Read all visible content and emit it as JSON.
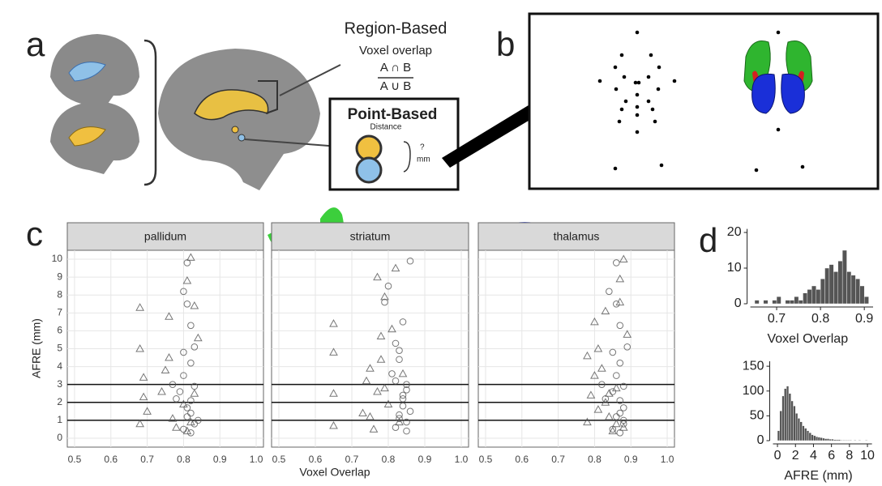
{
  "panels": {
    "a": {
      "letter": "a",
      "region_title": "Region-Based",
      "region_sub": "Voxel overlap",
      "num": "A ∩ B",
      "den": "A ∪ B",
      "point_title": "Point-Based",
      "point_sub": "Distance",
      "q": "?",
      "unit": "mm"
    },
    "b": {
      "letter": "b"
    },
    "c": {
      "letter": "c",
      "xlabel": "Voxel Overlap",
      "ylabel": "AFRE (mm)"
    },
    "d": {
      "letter": "d"
    }
  },
  "chart_data": [
    {
      "type": "scatter",
      "title": "pallidum",
      "xlim": [
        0.48,
        1.02
      ],
      "ylim": [
        -0.5,
        10.5
      ],
      "xticks": [
        0.5,
        0.6,
        0.7,
        0.8,
        0.9,
        {
          "value": 1,
          "label": "1.0"
        }
      ],
      "yticks": [
        0,
        1,
        2,
        3,
        4,
        5,
        6,
        7,
        8,
        9,
        10
      ],
      "grid": true,
      "hlines": [
        1,
        2,
        3
      ],
      "series": [
        {
          "marker": "circle",
          "color": "#555555",
          "x": [
            0.8,
            0.81,
            0.82,
            0.83,
            0.8,
            0.82,
            0.81,
            0.79,
            0.83,
            0.82,
            0.81,
            0.8,
            0.84,
            0.82,
            0.78,
            0.77,
            0.81,
            0.82,
            0.8,
            0.83
          ],
          "values": [
            0.5,
            1.2,
            2.1,
            0.8,
            3.5,
            4.2,
            1.7,
            2.6,
            5.1,
            6.3,
            9.8,
            8.2,
            1.0,
            0.3,
            2.2,
            3.0,
            7.5,
            1.4,
            4.8,
            2.9
          ]
        },
        {
          "marker": "triangle",
          "color": "#555555",
          "x": [
            0.68,
            0.69,
            0.68,
            0.7,
            0.75,
            0.76,
            0.77,
            0.74,
            0.82,
            0.83,
            0.81,
            0.84,
            0.69,
            0.8,
            0.82,
            0.76,
            0.83,
            0.81,
            0.68,
            0.78
          ],
          "values": [
            0.8,
            2.3,
            5.0,
            1.5,
            3.8,
            6.8,
            1.1,
            2.6,
            10.1,
            7.4,
            0.4,
            5.6,
            3.4,
            1.9,
            0.9,
            4.5,
            2.5,
            8.8,
            7.3,
            0.6
          ]
        }
      ]
    },
    {
      "type": "scatter",
      "title": "striatum",
      "xlim": [
        0.48,
        1.02
      ],
      "ylim": [
        -0.5,
        10.5
      ],
      "xticks": [
        0.5,
        0.6,
        0.7,
        0.8,
        0.9,
        {
          "value": 1,
          "label": "1.0"
        }
      ],
      "yticks": [
        0,
        1,
        2,
        3,
        4,
        5,
        6,
        7,
        8,
        9,
        10
      ],
      "grid": true,
      "hlines": [
        1,
        2,
        3
      ],
      "series": [
        {
          "marker": "circle",
          "color": "#555555",
          "x": [
            0.82,
            0.83,
            0.84,
            0.85,
            0.81,
            0.83,
            0.84,
            0.85,
            0.82,
            0.84,
            0.86,
            0.8,
            0.83,
            0.85,
            0.84,
            0.82,
            0.79,
            0.86,
            0.83,
            0.85
          ],
          "values": [
            0.6,
            1.3,
            2.2,
            0.9,
            3.6,
            4.4,
            1.8,
            2.7,
            5.3,
            6.5,
            9.9,
            8.5,
            1.1,
            0.4,
            2.4,
            3.2,
            7.6,
            1.5,
            4.9,
            3.0
          ]
        },
        {
          "marker": "triangle",
          "color": "#555555",
          "x": [
            0.65,
            0.65,
            0.65,
            0.65,
            0.73,
            0.75,
            0.77,
            0.78,
            0.76,
            0.79,
            0.8,
            0.82,
            0.74,
            0.78,
            0.83,
            0.81,
            0.79,
            0.77,
            0.84,
            0.75
          ],
          "values": [
            0.7,
            2.5,
            4.8,
            6.4,
            1.4,
            3.9,
            2.6,
            5.7,
            0.5,
            7.9,
            1.9,
            9.5,
            3.2,
            4.4,
            0.9,
            6.1,
            2.8,
            9.0,
            3.6,
            1.2
          ]
        }
      ]
    },
    {
      "type": "scatter",
      "title": "thalamus",
      "xlim": [
        0.48,
        1.02
      ],
      "ylim": [
        -0.5,
        10.5
      ],
      "xticks": [
        0.5,
        0.6,
        0.7,
        0.8,
        0.9,
        {
          "value": 1,
          "label": "1.0"
        }
      ],
      "yticks": [
        0,
        1,
        2,
        3,
        4,
        5,
        6,
        7,
        8,
        9,
        10
      ],
      "grid": true,
      "hlines": [
        1,
        2,
        3
      ],
      "series": [
        {
          "marker": "circle",
          "color": "#555555",
          "x": [
            0.85,
            0.86,
            0.87,
            0.88,
            0.86,
            0.87,
            0.88,
            0.85,
            0.89,
            0.87,
            0.86,
            0.84,
            0.88,
            0.87,
            0.83,
            0.82,
            0.86,
            0.87,
            0.85,
            0.88
          ],
          "values": [
            0.5,
            1.2,
            2.1,
            0.8,
            3.5,
            4.2,
            1.7,
            2.6,
            5.1,
            6.3,
            9.8,
            8.2,
            1.0,
            0.3,
            2.2,
            3.0,
            7.5,
            1.4,
            4.8,
            2.9
          ]
        },
        {
          "marker": "triangle",
          "color": "#555555",
          "x": [
            0.78,
            0.79,
            0.8,
            0.81,
            0.82,
            0.83,
            0.84,
            0.86,
            0.88,
            0.87,
            0.85,
            0.89,
            0.8,
            0.83,
            0.86,
            0.78,
            0.84,
            0.87,
            0.81,
            0.88
          ],
          "values": [
            0.9,
            2.4,
            6.5,
            1.6,
            3.9,
            7.1,
            1.2,
            2.8,
            10.0,
            7.6,
            0.4,
            5.8,
            3.5,
            2.0,
            0.8,
            4.6,
            2.5,
            8.9,
            5.0,
            0.6
          ]
        }
      ]
    },
    {
      "type": "histogram",
      "xlabel": "Voxel Overlap",
      "xlim": [
        0.64,
        0.92
      ],
      "ylim": [
        0,
        21
      ],
      "xticks": [
        0.7,
        0.8,
        0.9
      ],
      "yticks": [
        0,
        10,
        20
      ],
      "color": "#555555",
      "bins": [
        0.65,
        0.66,
        0.67,
        0.68,
        0.69,
        0.7,
        0.71,
        0.72,
        0.73,
        0.74,
        0.75,
        0.76,
        0.77,
        0.78,
        0.79,
        0.8,
        0.81,
        0.82,
        0.83,
        0.84,
        0.85,
        0.86,
        0.87,
        0.88,
        0.89,
        0.9,
        0.91
      ],
      "values": [
        1,
        0,
        1,
        0,
        1,
        2,
        0,
        1,
        1,
        2,
        1,
        3,
        4,
        5,
        4,
        7,
        10,
        11,
        9,
        12,
        15,
        9,
        8,
        7,
        5,
        2
      ]
    },
    {
      "type": "histogram",
      "xlabel": "AFRE (mm)",
      "xlim": [
        -0.5,
        10.5
      ],
      "ylim": [
        0,
        160
      ],
      "xticks": [
        0,
        2,
        4,
        6,
        8,
        10
      ],
      "yticks": [
        0,
        50,
        100,
        150
      ],
      "color": "#555555",
      "bins": [
        0,
        0.25,
        0.5,
        0.75,
        1,
        1.25,
        1.5,
        1.75,
        2,
        2.25,
        2.5,
        2.75,
        3,
        3.25,
        3.5,
        3.75,
        4,
        4.25,
        4.5,
        4.75,
        5,
        5.25,
        5.5,
        5.75,
        6,
        6.25,
        6.5,
        6.75,
        7,
        7.25,
        7.5,
        7.75,
        8,
        8.25,
        8.5,
        8.75,
        9,
        9.25,
        9.5,
        9.75,
        10
      ],
      "values": [
        20,
        60,
        90,
        105,
        110,
        95,
        80,
        70,
        55,
        45,
        38,
        30,
        25,
        20,
        16,
        12,
        10,
        8,
        7,
        6,
        5,
        4,
        4,
        3,
        3,
        2,
        2,
        2,
        1,
        1,
        1,
        1,
        1,
        0,
        1,
        0,
        1,
        0,
        0,
        1
      ]
    }
  ]
}
